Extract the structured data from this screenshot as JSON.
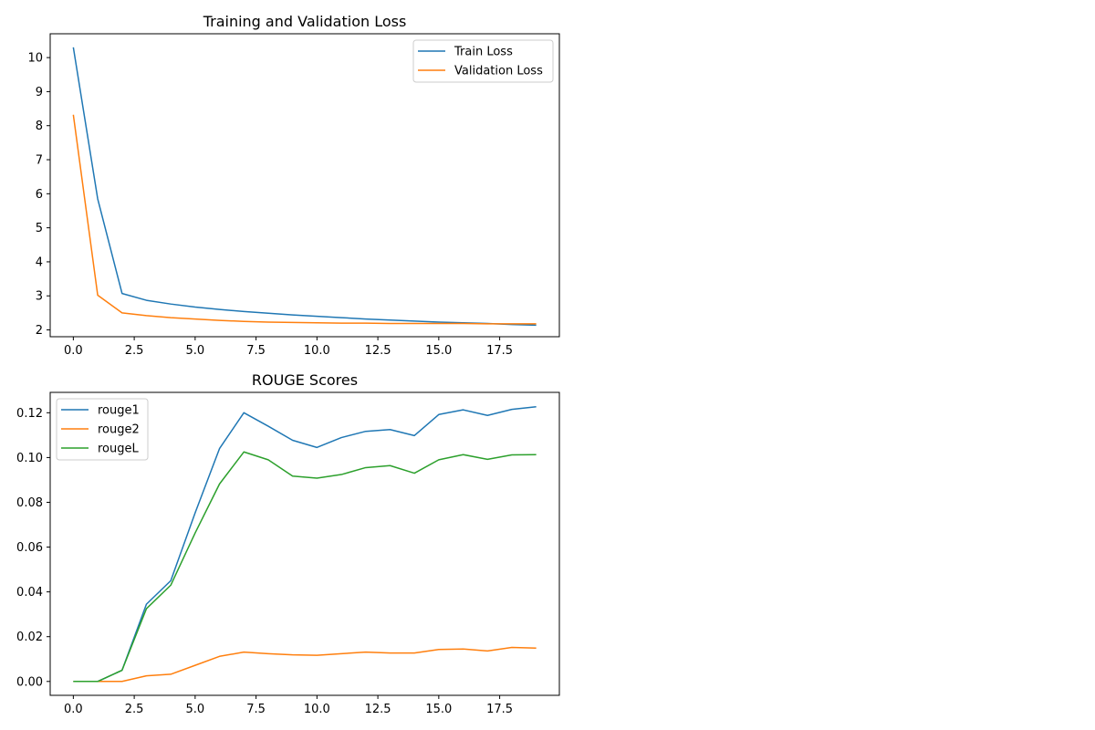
{
  "chart_data": [
    {
      "type": "line",
      "title": "Training and Validation Loss",
      "xlabel": "",
      "ylabel": "",
      "xlim": [
        -0.95,
        19.95
      ],
      "ylim": [
        1.8,
        10.7
      ],
      "xticks": [
        0,
        2.5,
        5,
        7.5,
        10,
        12.5,
        15,
        17.5
      ],
      "xtick_labels": [
        "0.0",
        "2.5",
        "5.0",
        "7.5",
        "10.0",
        "12.5",
        "15.0",
        "17.5"
      ],
      "yticks": [
        2,
        3,
        4,
        5,
        6,
        7,
        8,
        9,
        10
      ],
      "ytick_labels": [
        "2",
        "3",
        "4",
        "5",
        "6",
        "7",
        "8",
        "9",
        "10"
      ],
      "grid": false,
      "legend": "top-right",
      "x": [
        0,
        1,
        2,
        3,
        4,
        5,
        6,
        7,
        8,
        9,
        10,
        11,
        12,
        13,
        14,
        15,
        16,
        17,
        18,
        19
      ],
      "series": [
        {
          "name": "Train Loss",
          "color": "#1f77b4",
          "values": [
            10.3,
            5.85,
            3.07,
            2.87,
            2.76,
            2.67,
            2.6,
            2.54,
            2.49,
            2.44,
            2.4,
            2.36,
            2.32,
            2.29,
            2.26,
            2.23,
            2.21,
            2.19,
            2.16,
            2.14
          ]
        },
        {
          "name": "Validation Loss",
          "color": "#ff7f0e",
          "values": [
            8.32,
            3.02,
            2.5,
            2.42,
            2.36,
            2.32,
            2.28,
            2.25,
            2.23,
            2.22,
            2.21,
            2.2,
            2.2,
            2.19,
            2.19,
            2.19,
            2.19,
            2.18,
            2.18,
            2.18
          ]
        }
      ]
    },
    {
      "type": "line",
      "title": "ROUGE Scores",
      "xlabel": "",
      "ylabel": "",
      "xlim": [
        -0.95,
        19.95
      ],
      "ylim": [
        -0.0062,
        0.1291
      ],
      "xticks": [
        0,
        2.5,
        5,
        7.5,
        10,
        12.5,
        15,
        17.5
      ],
      "xtick_labels": [
        "0.0",
        "2.5",
        "5.0",
        "7.5",
        "10.0",
        "12.5",
        "15.0",
        "17.5"
      ],
      "yticks": [
        0,
        0.02,
        0.04,
        0.06,
        0.08,
        0.1,
        0.12
      ],
      "ytick_labels": [
        "0.00",
        "0.02",
        "0.04",
        "0.06",
        "0.08",
        "0.10",
        "0.12"
      ],
      "grid": false,
      "legend": "top-left",
      "x": [
        0,
        1,
        2,
        3,
        4,
        5,
        6,
        7,
        8,
        9,
        10,
        11,
        12,
        13,
        14,
        15,
        16,
        17,
        18,
        19
      ],
      "series": [
        {
          "name": "rouge1",
          "color": "#1f77b4",
          "values": [
            0.0,
            0.0,
            0.005,
            0.0345,
            0.045,
            0.0753,
            0.104,
            0.12,
            0.114,
            0.1077,
            0.1045,
            0.1089,
            0.1117,
            0.1125,
            0.1098,
            0.1192,
            0.1213,
            0.1188,
            0.1215,
            0.1227
          ]
        },
        {
          "name": "rouge2",
          "color": "#ff7f0e",
          "values": [
            0.0,
            0.0,
            0.0,
            0.0025,
            0.0032,
            0.0072,
            0.0112,
            0.0131,
            0.0124,
            0.0119,
            0.0117,
            0.0124,
            0.0131,
            0.0127,
            0.0127,
            0.0143,
            0.0145,
            0.0136,
            0.0152,
            0.0149
          ]
        },
        {
          "name": "rougeL",
          "color": "#2ca02c",
          "values": [
            0.0,
            0.0,
            0.005,
            0.0325,
            0.043,
            0.0663,
            0.0882,
            0.1025,
            0.099,
            0.0917,
            0.0908,
            0.0924,
            0.0955,
            0.0964,
            0.093,
            0.099,
            0.1013,
            0.0992,
            0.1012,
            0.1013
          ]
        }
      ]
    }
  ]
}
